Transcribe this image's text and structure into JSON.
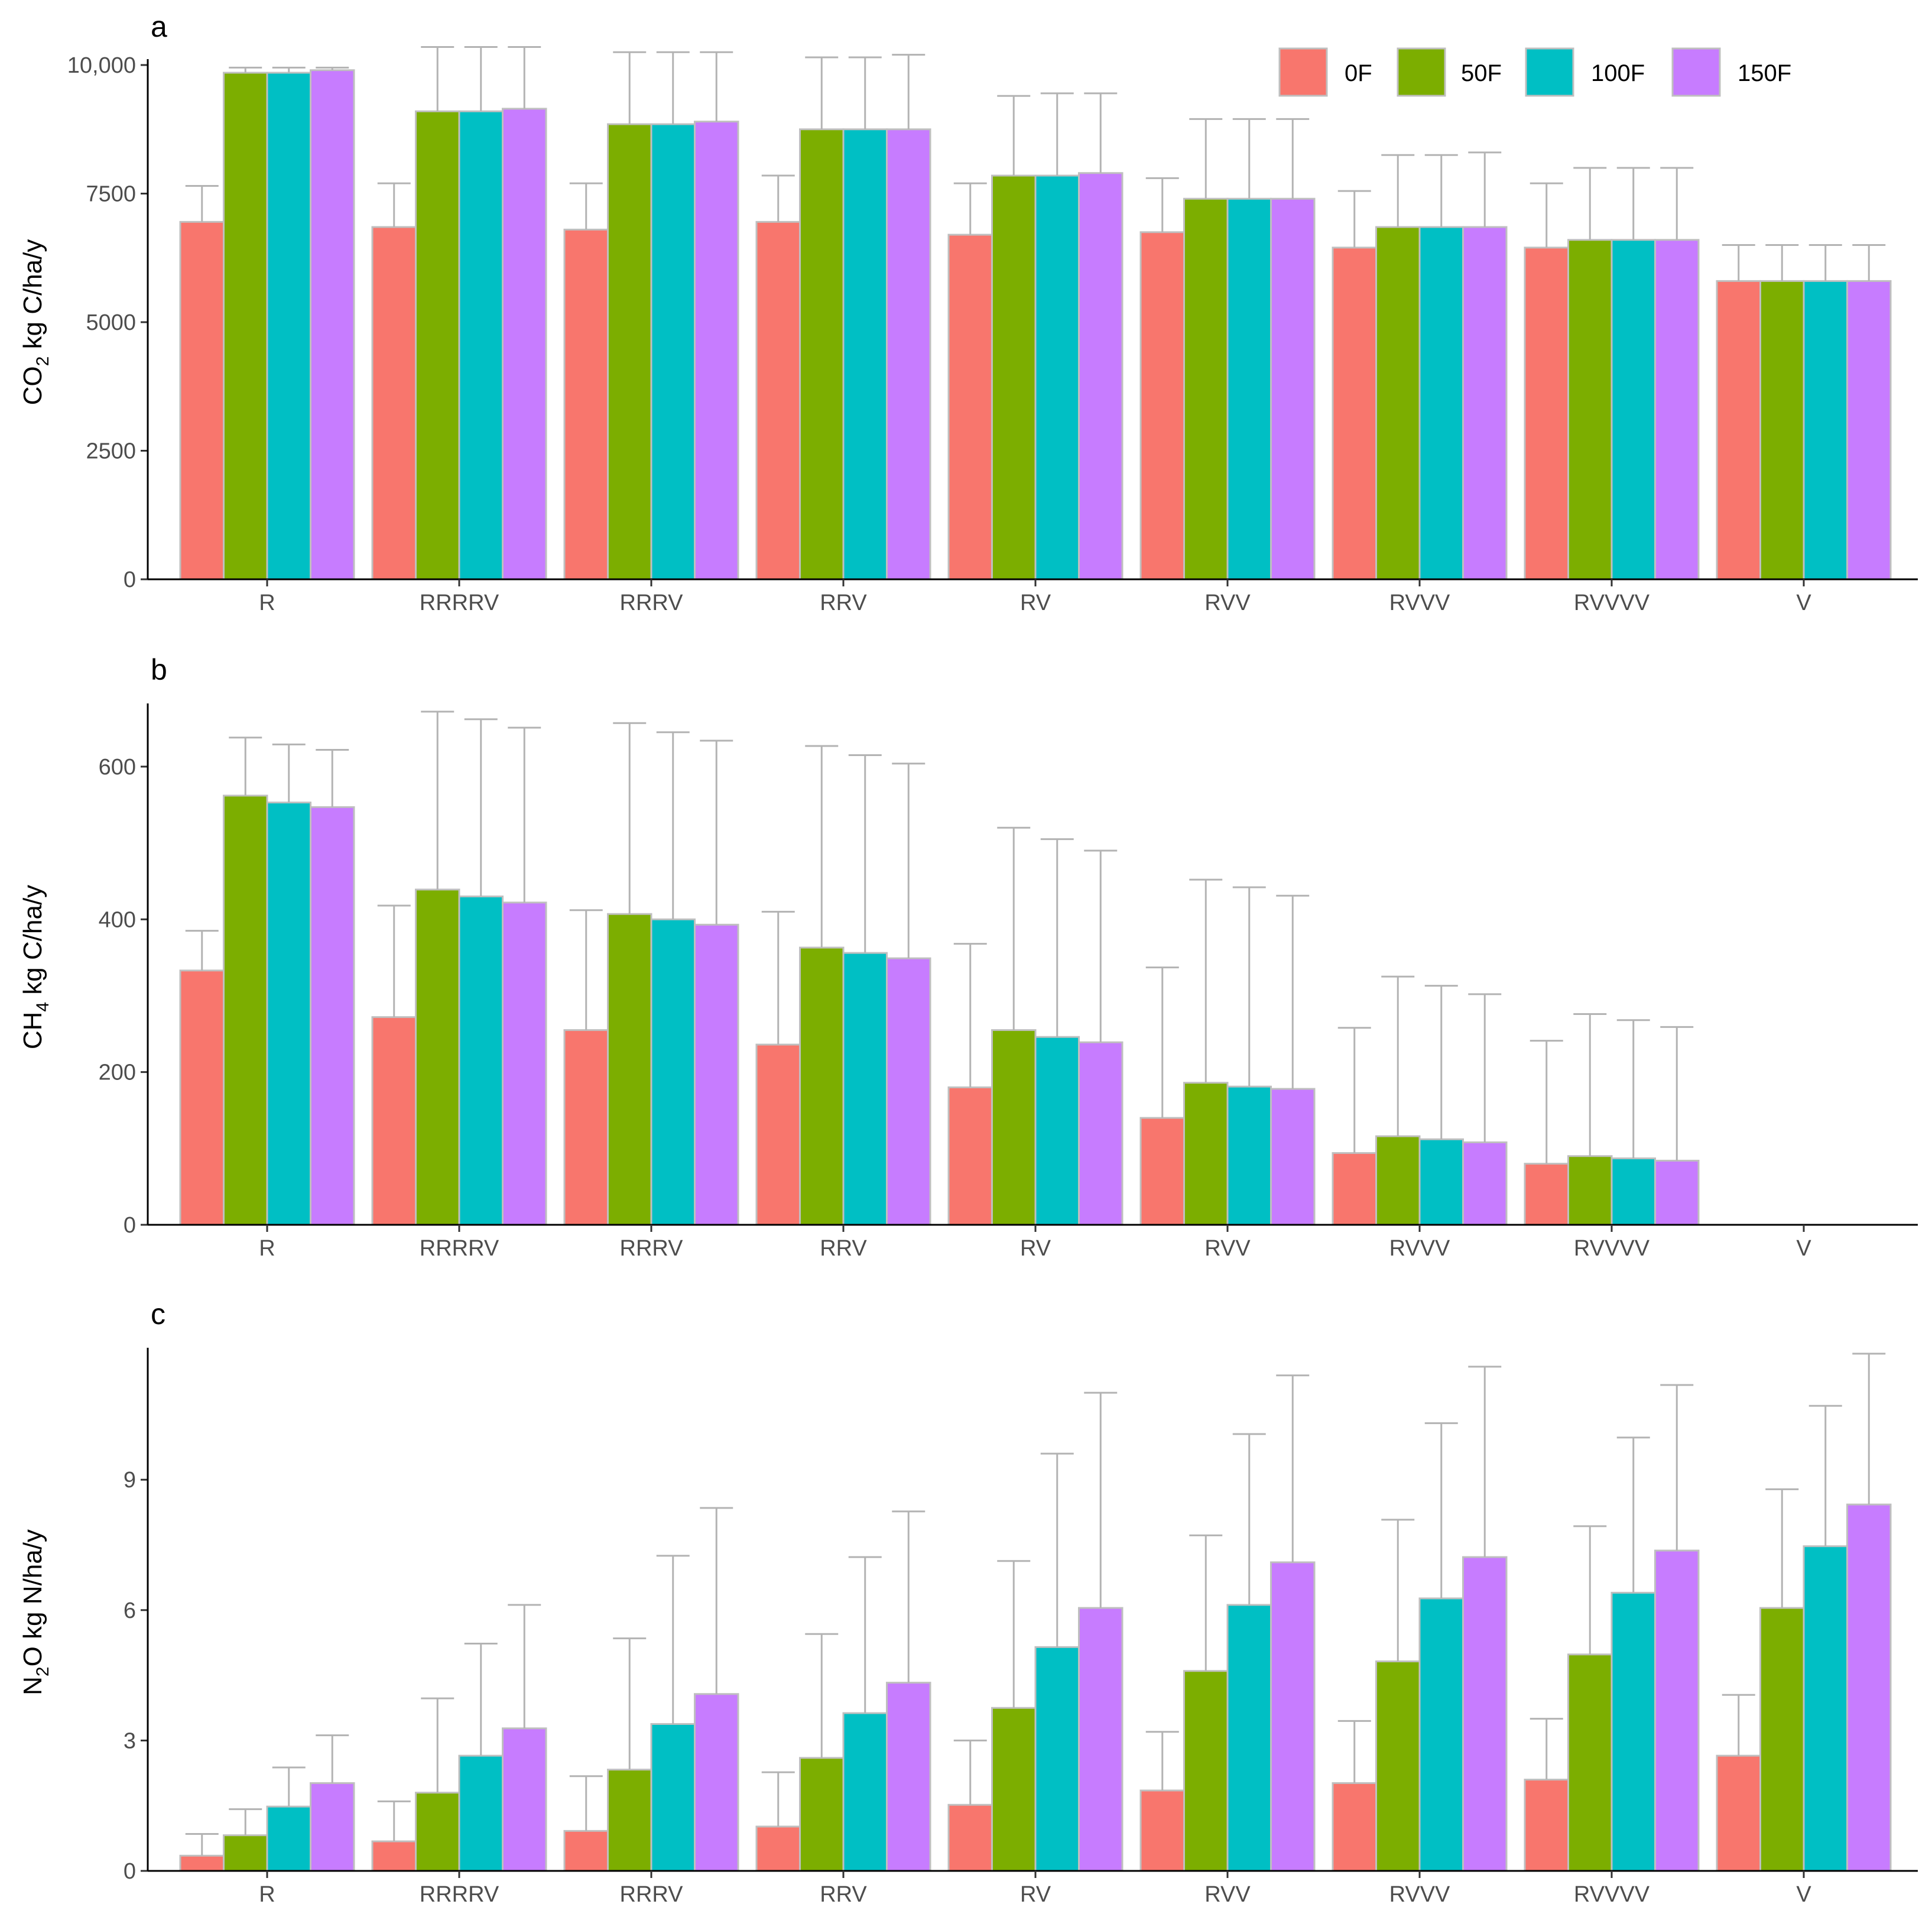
{
  "chart_data": [
    {
      "panel": "a",
      "type": "bar",
      "categories": [
        "R",
        "RRRRV",
        "RRRV",
        "RRV",
        "RV",
        "RVV",
        "RVVV",
        "RVVVV",
        "V"
      ],
      "ylabel": {
        "pre": "CO",
        "sub": "2",
        "post": " kg C/ha/y"
      },
      "ylim": [
        0,
        10000
      ],
      "yticks": [
        0,
        2500,
        5000,
        7500,
        10000
      ],
      "yticklabels": [
        "0",
        "2500",
        "5000",
        "7500",
        "10,000"
      ],
      "legend_position": "top-right",
      "series": [
        {
          "name": "0F",
          "values": [
            6950,
            6850,
            6800,
            6950,
            6700,
            6750,
            6450,
            6450,
            5800
          ],
          "upper": [
            7650,
            7700,
            7700,
            7850,
            7700,
            7800,
            7550,
            7700,
            6500
          ]
        },
        {
          "name": "50F",
          "values": [
            9850,
            9100,
            8850,
            8750,
            7850,
            7400,
            6850,
            6600,
            5800
          ],
          "upper": [
            9950,
            10350,
            10250,
            10150,
            9400,
            8950,
            8250,
            8000,
            6500
          ]
        },
        {
          "name": "100F",
          "values": [
            9850,
            9100,
            8850,
            8750,
            7850,
            7400,
            6850,
            6600,
            5800
          ],
          "upper": [
            9950,
            10350,
            10250,
            10150,
            9450,
            8950,
            8250,
            8000,
            6500
          ]
        },
        {
          "name": "150F",
          "values": [
            9900,
            9150,
            8900,
            8750,
            7900,
            7400,
            6850,
            6600,
            5800
          ],
          "upper": [
            9950,
            10350,
            10250,
            10200,
            9450,
            8950,
            8300,
            8000,
            6500
          ]
        }
      ]
    },
    {
      "panel": "b",
      "type": "bar",
      "categories": [
        "R",
        "RRRRV",
        "RRRV",
        "RRV",
        "RV",
        "RVV",
        "RVVV",
        "RVVVV",
        "V"
      ],
      "ylabel": {
        "pre": "CH",
        "sub": "4",
        "post": " kg C/ha/y"
      },
      "ylim": [
        0,
        675
      ],
      "yticks": [
        0,
        200,
        400,
        600
      ],
      "yticklabels": [
        "0",
        "200",
        "400",
        "600"
      ],
      "series": [
        {
          "name": "0F",
          "values": [
            333,
            272,
            255,
            236,
            180,
            140,
            94,
            80,
            0
          ],
          "upper": [
            385,
            418,
            412,
            410,
            368,
            337,
            258,
            241,
            0
          ]
        },
        {
          "name": "50F",
          "values": [
            562,
            439,
            407,
            363,
            255,
            186,
            116,
            90,
            0
          ],
          "upper": [
            638,
            672,
            657,
            627,
            520,
            452,
            325,
            276,
            0
          ]
        },
        {
          "name": "100F",
          "values": [
            553,
            430,
            400,
            356,
            246,
            181,
            112,
            87,
            0
          ],
          "upper": [
            629,
            662,
            645,
            615,
            505,
            442,
            313,
            268,
            0
          ]
        },
        {
          "name": "150F",
          "values": [
            547,
            422,
            393,
            349,
            239,
            178,
            108,
            84,
            0
          ],
          "upper": [
            622,
            651,
            634,
            604,
            490,
            431,
            302,
            259,
            0
          ]
        }
      ]
    },
    {
      "panel": "c",
      "type": "bar",
      "categories": [
        "R",
        "RRRRV",
        "RRRV",
        "RRV",
        "RV",
        "RVV",
        "RVVV",
        "RVVVV",
        "V"
      ],
      "ylabel": {
        "pre": "N",
        "sub": "2",
        "post": "O kg N/ha/y"
      },
      "ylim": [
        0,
        11.9
      ],
      "yticks": [
        0,
        3,
        6,
        9
      ],
      "yticklabels": [
        "0",
        "3",
        "6",
        "9"
      ],
      "series": [
        {
          "name": "0F",
          "values": [
            0.35,
            0.68,
            0.92,
            1.02,
            1.52,
            1.85,
            2.02,
            2.1,
            2.65
          ],
          "upper": [
            0.85,
            1.6,
            2.18,
            2.27,
            3.0,
            3.2,
            3.45,
            3.5,
            4.05
          ]
        },
        {
          "name": "50F",
          "values": [
            0.82,
            1.8,
            2.33,
            2.6,
            3.75,
            4.6,
            4.82,
            4.98,
            6.05
          ],
          "upper": [
            1.42,
            3.97,
            5.35,
            5.45,
            7.13,
            7.72,
            8.08,
            7.93,
            8.78
          ]
        },
        {
          "name": "100F",
          "values": [
            1.48,
            2.65,
            3.38,
            3.63,
            5.15,
            6.12,
            6.27,
            6.4,
            7.47
          ],
          "upper": [
            2.38,
            5.23,
            7.25,
            7.22,
            9.6,
            10.05,
            10.3,
            9.97,
            10.7
          ]
        },
        {
          "name": "150F",
          "values": [
            2.02,
            3.28,
            4.07,
            4.33,
            6.05,
            7.1,
            7.22,
            7.37,
            8.43
          ],
          "upper": [
            3.12,
            6.12,
            8.35,
            8.27,
            11.0,
            11.4,
            11.6,
            11.18,
            11.9
          ]
        }
      ]
    }
  ],
  "colors": {
    "0F": "#F8766D",
    "50F": "#7CAE00",
    "100F": "#00BFC4",
    "150F": "#C77CFF",
    "bar_outline": "#bfbfbf",
    "errorbar": "#b3b3b3"
  }
}
